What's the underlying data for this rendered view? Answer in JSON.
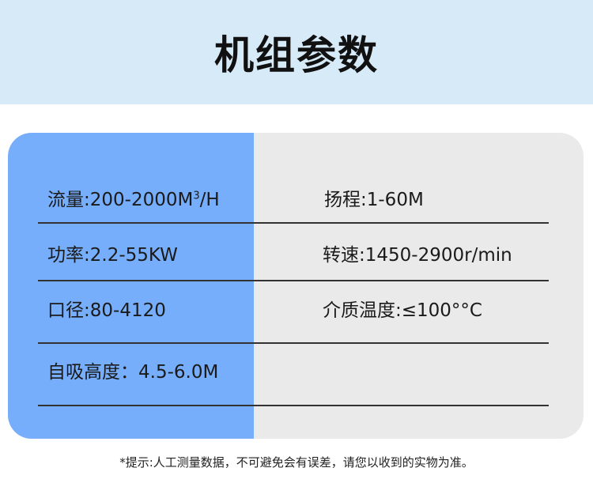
{
  "header": {
    "title": "机组参数"
  },
  "params": [
    {
      "label": "流量",
      "value": "200-2000M",
      "sup": "3",
      "suffix": "/H"
    },
    {
      "label": "扬程",
      "value": "1-60M"
    },
    {
      "label": "功率",
      "value": "2.2-55KW"
    },
    {
      "label": "转速",
      "value": "1450-2900r/min"
    },
    {
      "label": "口径",
      "value": "80-4120"
    },
    {
      "label": "介质温度",
      "value": "≤100°°C"
    },
    {
      "label": "自吸高度：",
      "value": "4.5-6.0M"
    }
  ],
  "colors": {
    "header_bg": "#d7eaf8",
    "left_column": "#76aefb",
    "right_column": "#ebeaeb"
  },
  "footer": {
    "note": "*提示:人工测量数据，不可避免会有误差，请您以收到的实物为准。"
  }
}
